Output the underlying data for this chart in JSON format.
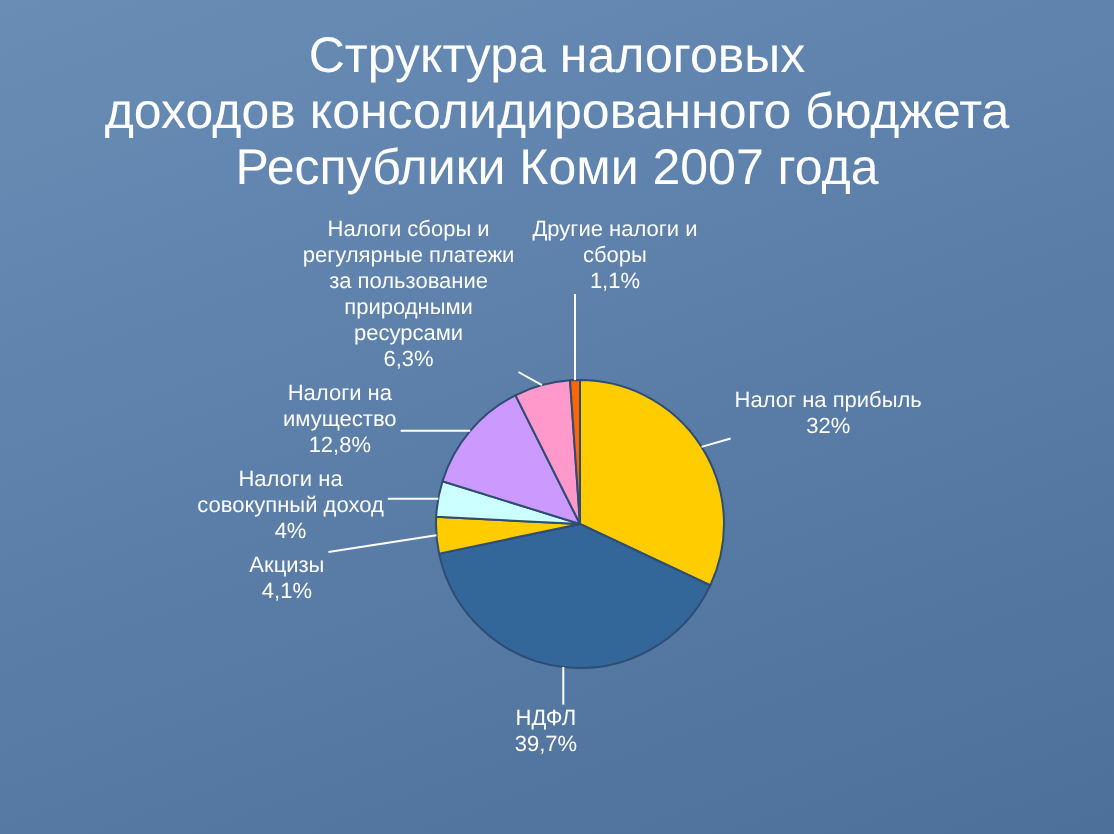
{
  "chart_data": {
    "type": "pie",
    "title": "Структура налоговых\nдоходов консолидированного бюджета\nРеспублики Коми 2007 года",
    "categories": [
      "Налог на прибыль",
      "НДФЛ",
      "Акцизы",
      "Налоги на совокупный доход",
      "Налоги на имущество",
      "Налоги сборы и регулярные платежи за пользование природными ресурсами",
      "Другие налоги и сборы"
    ],
    "values": [
      32,
      39.7,
      4.1,
      4,
      12.8,
      6.3,
      1.1
    ],
    "colors": [
      "#ffcc00",
      "#336699",
      "#ffcc00",
      "#ccffff",
      "#cc99ff",
      "#ff99cc",
      "#ff6600"
    ],
    "value_labels": [
      "32%",
      "39,7%",
      "4,1%",
      "4%",
      "12,8%",
      "6,3%",
      "1,1%"
    ]
  }
}
